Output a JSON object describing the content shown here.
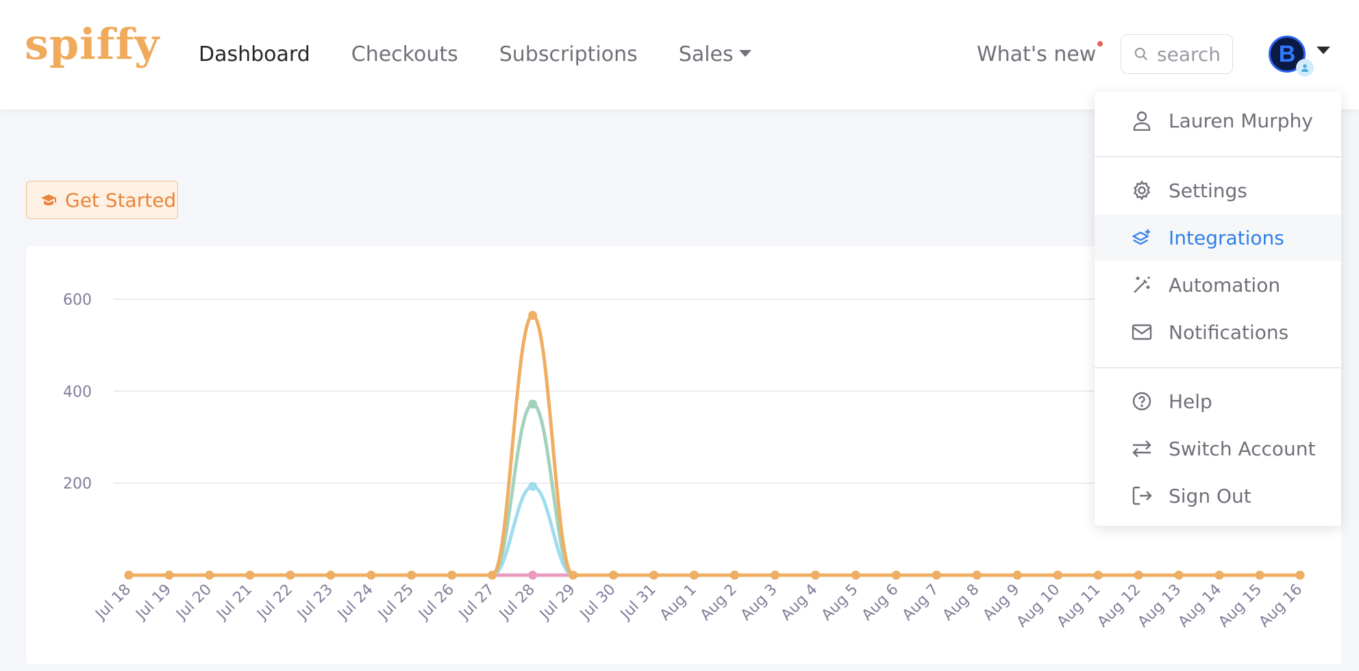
{
  "header": {
    "logo": "spiffy",
    "nav": [
      {
        "label": "Dashboard",
        "active": true
      },
      {
        "label": "Checkouts",
        "active": false
      },
      {
        "label": "Subscriptions",
        "active": false
      },
      {
        "label": "Sales",
        "active": false,
        "has_dropdown": true
      }
    ],
    "whats_new": "What's new",
    "search_placeholder": "search",
    "avatar_letter": "B"
  },
  "get_started": {
    "label": "Get Started",
    "icon": "graduation-cap-icon"
  },
  "user_menu": {
    "user_name": "Lauren Murphy",
    "items": [
      {
        "label": "Settings",
        "icon": "gear-icon"
      },
      {
        "label": "Integrations",
        "icon": "layers-plus-icon",
        "active": true
      },
      {
        "label": "Automation",
        "icon": "magic-wand-icon"
      },
      {
        "label": "Notifications",
        "icon": "envelope-icon"
      }
    ],
    "footer_items": [
      {
        "label": "Help",
        "icon": "question-circle-icon"
      },
      {
        "label": "Switch Account",
        "icon": "switch-arrows-icon"
      },
      {
        "label": "Sign Out",
        "icon": "sign-out-icon"
      }
    ]
  },
  "colors": {
    "brand": "#efaa5c",
    "accent_blue": "#2f7fe6",
    "series_orange": "#efae62",
    "series_green": "#a3d2bc",
    "series_blue": "#9fdcee",
    "series_pink": "#e99bc1"
  },
  "chart_data": {
    "type": "line",
    "x": [
      "Jul 18",
      "Jul 19",
      "Jul 20",
      "Jul 21",
      "Jul 22",
      "Jul 23",
      "Jul 24",
      "Jul 25",
      "Jul 26",
      "Jul 27",
      "Jul 28",
      "Jul 29",
      "Jul 30",
      "Jul 31",
      "Aug 1",
      "Aug 2",
      "Aug 3",
      "Aug 4",
      "Aug 5",
      "Aug 6",
      "Aug 7",
      "Aug 8",
      "Aug 9",
      "Aug 10",
      "Aug 11",
      "Aug 12",
      "Aug 13",
      "Aug 14",
      "Aug 15",
      "Aug 16"
    ],
    "series": [
      {
        "color": "#efae62",
        "values": [
          0,
          0,
          0,
          0,
          0,
          0,
          0,
          0,
          0,
          0,
          565,
          0,
          0,
          0,
          0,
          0,
          0,
          0,
          0,
          0,
          0,
          0,
          0,
          0,
          0,
          0,
          0,
          0,
          0,
          0
        ]
      },
      {
        "color": "#a3d2bc",
        "values": [
          0,
          0,
          0,
          0,
          0,
          0,
          0,
          0,
          0,
          0,
          372,
          0,
          0,
          0,
          0,
          0,
          0,
          0,
          0,
          0,
          0,
          0,
          0,
          0,
          0,
          0,
          0,
          0,
          0,
          0
        ]
      },
      {
        "color": "#9fdcee",
        "values": [
          0,
          0,
          0,
          0,
          0,
          0,
          0,
          0,
          0,
          0,
          193,
          0,
          0,
          0,
          0,
          0,
          0,
          0,
          0,
          0,
          0,
          0,
          0,
          0,
          0,
          0,
          0,
          0,
          0,
          0
        ]
      },
      {
        "color": "#e99bc1",
        "values": [
          0,
          0,
          0,
          0,
          0,
          0,
          0,
          0,
          0,
          0,
          0,
          0,
          0,
          0,
          0,
          0,
          0,
          0,
          0,
          0,
          0,
          0,
          0,
          0,
          0,
          0,
          0,
          0,
          0,
          0
        ]
      }
    ],
    "y_ticks": [
      200,
      400,
      600
    ],
    "ylim": [
      0,
      600
    ],
    "grid": true
  }
}
